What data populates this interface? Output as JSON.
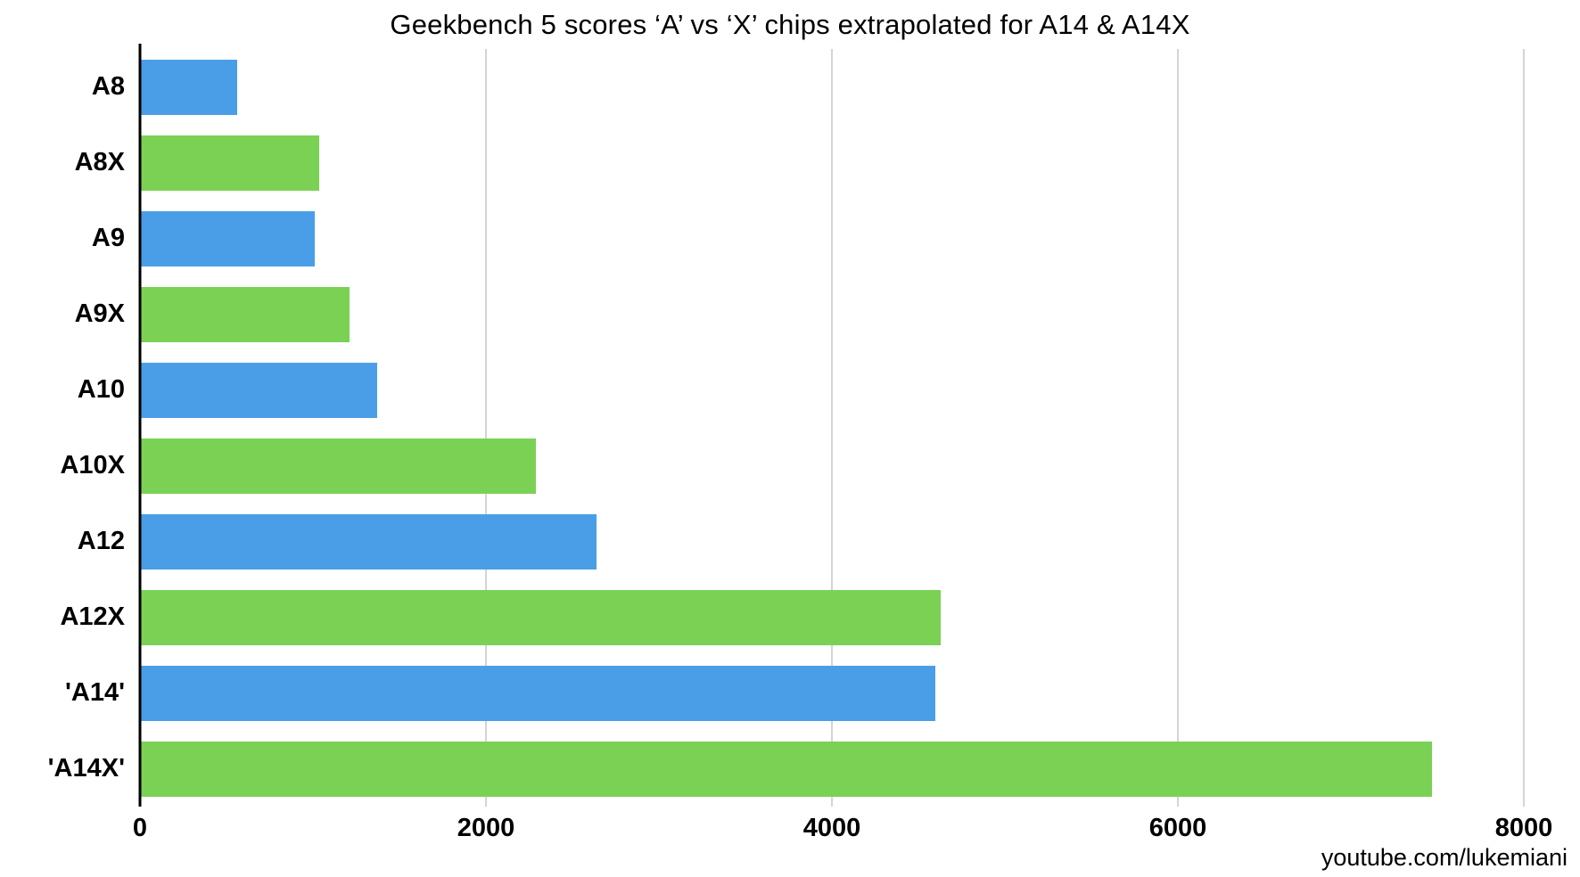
{
  "chart_data": {
    "type": "bar",
    "orientation": "horizontal",
    "title": "Geekbench 5 scores ‘A’ vs ‘X’ chips extrapolated for A14 & A14X",
    "categories": [
      "A8",
      "A8X",
      "A9",
      "A9X",
      "A10",
      "A10X",
      "A12",
      "A12X",
      "'A14'",
      "'A14X'"
    ],
    "values": [
      560,
      1035,
      1010,
      1210,
      1370,
      2290,
      2640,
      4630,
      4600,
      7470
    ],
    "bar_colors": [
      "#4A9EE8",
      "#7BD154",
      "#4A9EE8",
      "#7BD154",
      "#4A9EE8",
      "#7BD154",
      "#4A9EE8",
      "#7BD154",
      "#4A9EE8",
      "#7BD154"
    ],
    "colors": {
      "a_chip_blue": "#4A9EE8",
      "x_chip_green": "#7BD154",
      "gridline": "#d4d4d4",
      "axis": "#000000"
    },
    "xlim": [
      0,
      8000
    ],
    "x_ticks": [
      0,
      2000,
      4000,
      6000,
      8000
    ],
    "x_tick_labels": [
      "0",
      "2000",
      "4000",
      "6000",
      "8000"
    ],
    "xlabel": "",
    "ylabel": "",
    "grid": "vertical",
    "legend": "none"
  },
  "footer": {
    "watermark": "youtube.com/lukemiani"
  }
}
